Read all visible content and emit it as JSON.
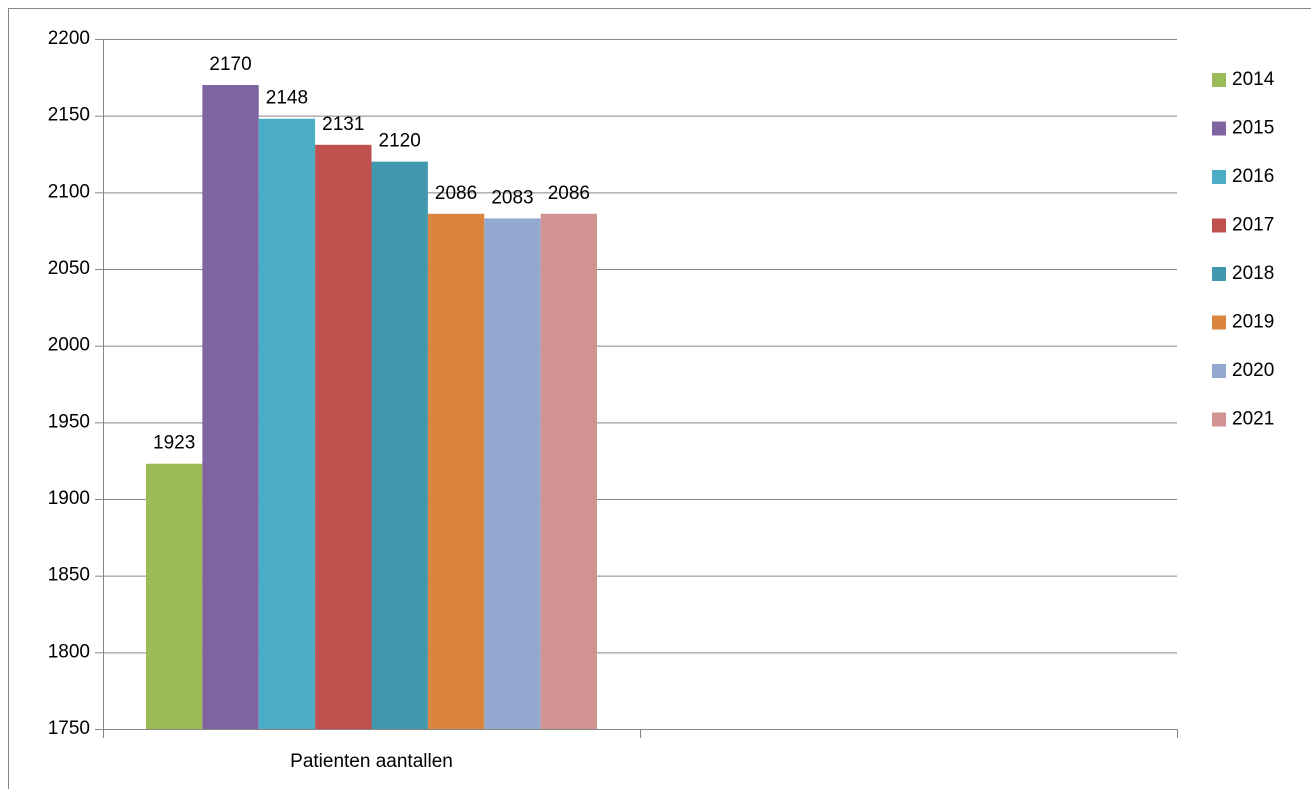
{
  "chart_data": {
    "type": "bar",
    "categories": [
      "Patienten aantallen",
      null
    ],
    "series": [
      {
        "name": "2014",
        "color": "#9bbb59",
        "values": [
          1923,
          null
        ]
      },
      {
        "name": "2015",
        "color": "#8064a2",
        "values": [
          2170,
          null
        ]
      },
      {
        "name": "2016",
        "color": "#4bacc6",
        "values": [
          2148,
          null
        ]
      },
      {
        "name": "2017",
        "color": "#c0504d",
        "values": [
          2131,
          null
        ]
      },
      {
        "name": "2018",
        "color": "#4198af",
        "values": [
          2120,
          null
        ]
      },
      {
        "name": "2019",
        "color": "#db843d",
        "values": [
          2086,
          null
        ]
      },
      {
        "name": "2020",
        "color": "#93a9cf",
        "values": [
          2083,
          null
        ]
      },
      {
        "name": "2021",
        "color": "#d19392",
        "values": [
          2086,
          null
        ]
      }
    ],
    "ylim": [
      1750,
      2200
    ],
    "yticks": [
      1750,
      1800,
      1850,
      1900,
      1950,
      2000,
      2050,
      2100,
      2150,
      2200
    ],
    "grid": true,
    "legend": "right"
  }
}
